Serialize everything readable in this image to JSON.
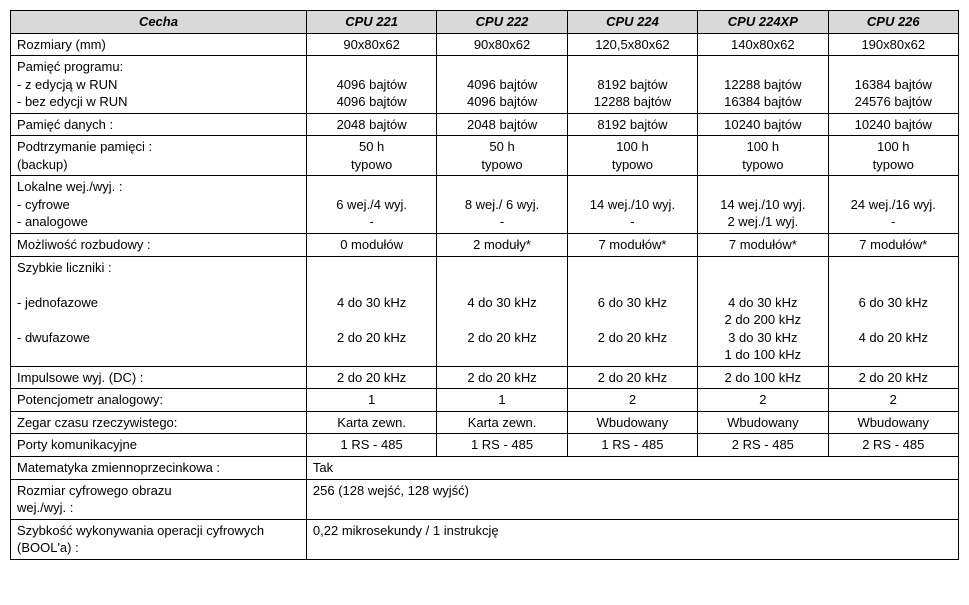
{
  "headers": [
    "Cecha",
    "CPU 221",
    "CPU 222",
    "CPU 224",
    "CPU 224XP",
    "CPU 226"
  ],
  "rows": [
    {
      "feature": "Rozmiary (mm)",
      "v": [
        "90x80x62",
        "90x80x62",
        "120,5x80x62",
        "140x80x62",
        "190x80x62"
      ]
    },
    {
      "feature": "Pamięć programu:\n       - z edycją w RUN\n       - bez edycji w RUN",
      "v": [
        "\n4096 bajtów\n4096 bajtów",
        "\n4096 bajtów\n4096 bajtów",
        "\n8192 bajtów\n12288 bajtów",
        "\n12288 bajtów\n16384 bajtów",
        "\n16384 bajtów\n24576 bajtów"
      ]
    },
    {
      "feature": "Pamięć danych :",
      "v": [
        "2048 bajtów",
        "2048 bajtów",
        "8192 bajtów",
        "10240 bajtów",
        "10240 bajtów"
      ]
    },
    {
      "feature": "Podtrzymanie pamięci :\n        (backup)",
      "v": [
        "50 h\ntypowo",
        "50 h\ntypowo",
        "100 h\ntypowo",
        "100 h\ntypowo",
        "100 h\ntypowo"
      ]
    },
    {
      "feature": "Lokalne wej./wyj. :\n   - cyfrowe\n   - analogowe",
      "v": [
        "\n6 wej./4 wyj.\n-",
        "\n8 wej./ 6 wyj.\n-",
        "\n14 wej./10 wyj.\n-",
        "\n14 wej./10 wyj.\n2 wej./1 wyj.",
        "\n24 wej./16 wyj.\n-"
      ]
    },
    {
      "feature": "Możliwość rozbudowy :",
      "v": [
        "0 modułów",
        "2 moduły*",
        "7 modułów*",
        "7 modułów*",
        "7 modułów*"
      ]
    },
    {
      "feature": "Szybkie liczniki :\n\n- jednofazowe\n\n- dwufazowe\n ",
      "v": [
        "\n\n4 do 30 kHz\n\n2 do 20 kHz\n ",
        "\n\n4 do 30 kHz\n\n2 do 20 kHz\n ",
        "\n\n6 do 30 kHz\n\n2 do 20 kHz\n ",
        "\n\n4 do 30 kHz\n2 do 200 kHz\n3 do 30 kHz\n1 do 100 kHz\n ",
        "\n\n6 do 30 kHz\n\n4 do 20 kHz\n "
      ]
    },
    {
      "feature": "Impulsowe wyj. (DC) :",
      "v": [
        "2 do 20 kHz",
        "2 do 20 kHz",
        "2 do 20 kHz",
        "2 do 100 kHz",
        "2 do 20 kHz"
      ]
    },
    {
      "feature": "Potencjometr analogowy:",
      "v": [
        "1",
        "1",
        "2",
        "2",
        "2"
      ]
    },
    {
      "feature": "Zegar czasu rzeczywistego:",
      "v": [
        "Karta zewn.",
        "Karta zewn.",
        "Wbudowany",
        "Wbudowany",
        "Wbudowany"
      ]
    },
    {
      "feature": "Porty komunikacyjne",
      "v": [
        "1  RS - 485",
        "1  RS - 485",
        "1  RS - 485",
        "2  RS - 485",
        "2  RS - 485"
      ]
    },
    {
      "feature": "Matematyka zmiennoprzecinkowa :",
      "span": "       Tak"
    },
    {
      "feature": "Rozmiar cyfrowego obrazu\nwej./wyj. :",
      "span": "       256 (128 wejść, 128 wyjść)"
    },
    {
      "feature": "Szybkość wykonywania operacji cyfrowych (BOOL'a) :",
      "span": "       0,22 mikrosekundy / 1 instrukcję"
    }
  ]
}
